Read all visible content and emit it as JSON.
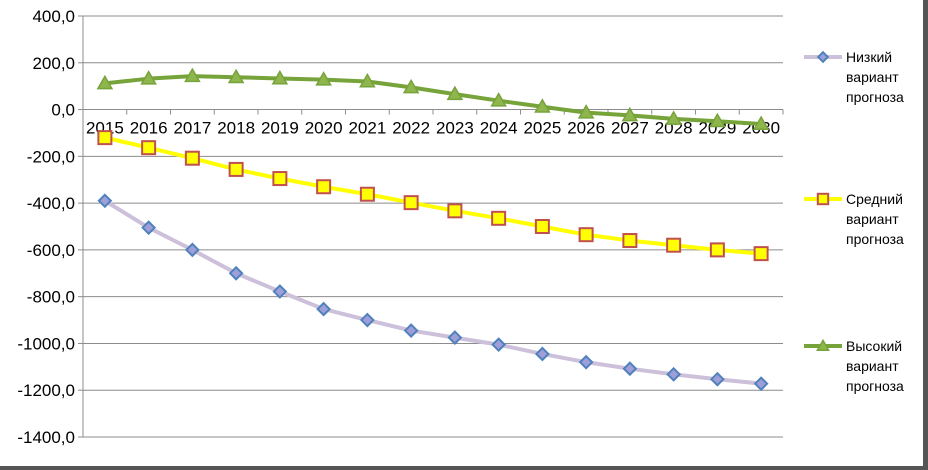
{
  "chart_data": {
    "type": "line",
    "categories": [
      "2015",
      "2016",
      "2017",
      "2018",
      "2019",
      "2020",
      "2021",
      "2022",
      "2023",
      "2024",
      "2025",
      "2026",
      "2027",
      "2028",
      "2029",
      "2030"
    ],
    "ylim": [
      -1400,
      400
    ],
    "yticks": [
      400,
      200,
      0,
      -200,
      -400,
      -600,
      -800,
      -1000,
      -1200,
      -1400
    ],
    "ytick_labels": [
      "400,0",
      "200,0",
      "0,0",
      "-200,0",
      "-400,0",
      "-600,0",
      "-800,0",
      "-1000,0",
      "-1200,0",
      "-1400,0"
    ],
    "grid": true,
    "legend_position": "right",
    "series": [
      {
        "name": "Низкий вариант прогноза",
        "legend_lines": [
          "Низкий",
          "вариант",
          "прогноза"
        ],
        "marker": "diamond",
        "line_color": "#ccc0da",
        "marker_fill": "#9e9ed8",
        "marker_stroke": "#4f81bd",
        "values": [
          -390,
          -505,
          -600,
          -700,
          -778,
          -853,
          -900,
          -945,
          -975,
          -1005,
          -1045,
          -1080,
          -1108,
          -1132,
          -1153,
          -1172
        ]
      },
      {
        "name": "Средний вариант прогноза",
        "legend_lines": [
          "Средний",
          "вариант",
          "прогноза"
        ],
        "marker": "square",
        "line_color": "#ffff00",
        "marker_fill": "#ffff00",
        "marker_stroke": "#c0504d",
        "values": [
          -120,
          -163,
          -208,
          -256,
          -295,
          -330,
          -362,
          -398,
          -433,
          -465,
          -500,
          -535,
          -560,
          -580,
          -600,
          -616
        ]
      },
      {
        "name": "Высокий вариант прогноза",
        "legend_lines": [
          "Высокий",
          "вариант",
          "прогноза"
        ],
        "marker": "triangle",
        "line_color": "#77a33b",
        "marker_fill": "#8fb54d",
        "marker_stroke": "#77a33b",
        "values": [
          112,
          132,
          143,
          138,
          133,
          128,
          120,
          95,
          66,
          38,
          12,
          -13,
          -25,
          -40,
          -50,
          -62
        ]
      }
    ]
  }
}
